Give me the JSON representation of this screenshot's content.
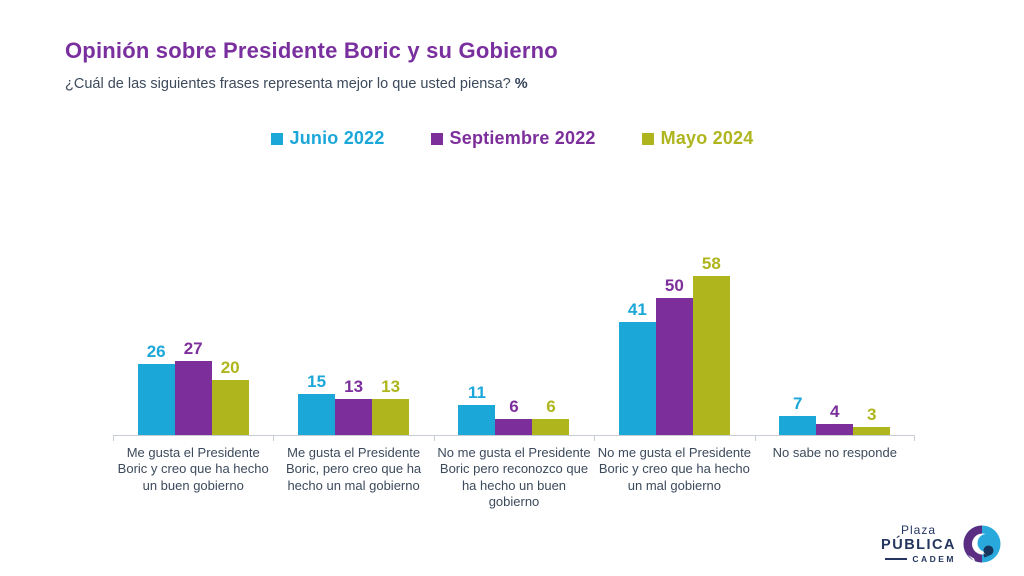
{
  "header": {
    "title": "Opinión sobre Presidente Boric y su Gobierno",
    "subtitle": "¿Cuál de las siguientes frases representa mejor lo que usted piensa? ",
    "subtitle_suffix": "%"
  },
  "chart_data": {
    "type": "bar",
    "title": "Opinión sobre Presidente Boric y su Gobierno",
    "xlabel": "",
    "ylabel": "",
    "ylim": [
      0,
      60
    ],
    "grid": false,
    "legend_position": "top",
    "value_labels": true,
    "categories": [
      "Me gusta el Presidente Boric y creo que ha hecho un buen gobierno",
      "Me gusta el Presidente Boric, pero creo que ha hecho un mal gobierno",
      "No me gusta el Presidente Boric pero reconozco que ha hecho un buen gobierno",
      "No me gusta el Presidente Boric y creo que ha hecho un mal gobierno",
      "No sabe no responde"
    ],
    "series": [
      {
        "name": "Junio 2022",
        "color": "#1ca7d9",
        "values": [
          26,
          15,
          11,
          41,
          7
        ]
      },
      {
        "name": "Septiembre 2022",
        "color": "#7c2e9b",
        "values": [
          27,
          13,
          6,
          50,
          4
        ]
      },
      {
        "name": "Mayo 2024",
        "color": "#afb51d",
        "values": [
          20,
          13,
          6,
          58,
          3
        ]
      }
    ]
  },
  "colors": {
    "title": "#7a2f9e",
    "body_text": "#3c4a5c",
    "axis": "#c8cdd3",
    "logo_navy": "#24365f",
    "logo_icon_cyan": "#29a8dc",
    "logo_icon_purple": "#5b2d82",
    "logo_icon_navy": "#16355c"
  },
  "logo": {
    "plaza": "Plaza",
    "publica": "PÚBLICA",
    "cadem": "CADEM",
    "icon": "plaza-publica-cadem-swirl-icon"
  }
}
